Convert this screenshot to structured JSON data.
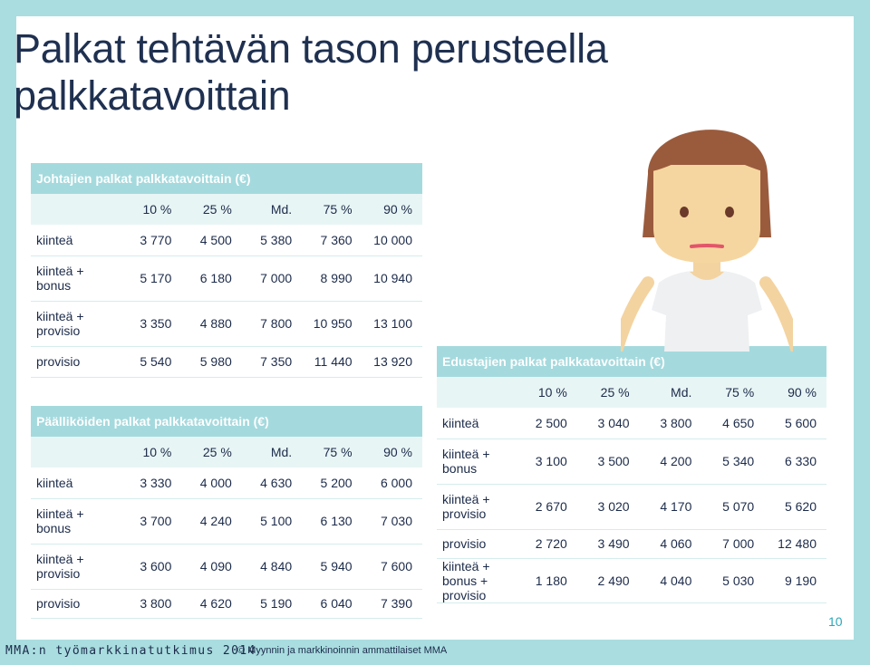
{
  "title": "Palkat tehtävän tason perusteella palkkatavoittain",
  "columns": [
    "10 %",
    "25 %",
    "Md.",
    "75 %",
    "90 %"
  ],
  "tables": {
    "johtajat": {
      "caption": "Johtajien palkat palkkatavoittain (€)",
      "rows": [
        {
          "label": "kiinteä",
          "values": [
            "3 770",
            "4 500",
            "5 380",
            "7 360",
            "10 000"
          ]
        },
        {
          "label": "kiinteä + bonus",
          "values": [
            "5 170",
            "6 180",
            "7 000",
            "8 990",
            "10 940"
          ]
        },
        {
          "label": "kiinteä + provisio",
          "values": [
            "3 350",
            "4 880",
            "7 800",
            "10 950",
            "13 100"
          ]
        },
        {
          "label": "provisio",
          "values": [
            "5 540",
            "5 980",
            "7 350",
            "11 440",
            "13 920"
          ]
        }
      ]
    },
    "paallikot": {
      "caption": "Päälliköiden palkat palkkatavoittain (€)",
      "rows": [
        {
          "label": "kiinteä",
          "values": [
            "3 330",
            "4 000",
            "4 630",
            "5 200",
            "6 000"
          ]
        },
        {
          "label": "kiinteä + bonus",
          "values": [
            "3 700",
            "4 240",
            "5 100",
            "6 130",
            "7 030"
          ]
        },
        {
          "label": "kiinteä + provisio",
          "values": [
            "3 600",
            "4 090",
            "4 840",
            "5 940",
            "7 600"
          ]
        },
        {
          "label": "provisio",
          "values": [
            "3 800",
            "4 620",
            "5 190",
            "6 040",
            "7 390"
          ]
        }
      ]
    },
    "edustajat": {
      "caption": "Edustajien palkat palkkatavoittain (€)",
      "rows": [
        {
          "label": "kiinteä",
          "values": [
            "2 500",
            "3 040",
            "3 800",
            "4 650",
            "5 600"
          ]
        },
        {
          "label": "kiinteä + bonus",
          "values": [
            "3 100",
            "3 500",
            "4 200",
            "5 340",
            "6 330"
          ]
        },
        {
          "label": "kiinteä + provisio",
          "values": [
            "2 670",
            "3 020",
            "4 170",
            "5 070",
            "5 620"
          ]
        },
        {
          "label": "provisio",
          "values": [
            "2 720",
            "3 490",
            "4 060",
            "7 000",
            "12 480"
          ]
        },
        {
          "label": "kiinteä + bonus + provisio",
          "values": [
            "1 180",
            "2 490",
            "4 040",
            "5 030",
            "9 190"
          ]
        }
      ]
    }
  },
  "footer": {
    "survey": "MMA:n työmarkkinatutkimus 2014",
    "copyright": "© Myynnin ja markkinoinnin ammattilaiset MMA",
    "page": "10"
  },
  "colors": {
    "background": "#a9dde0",
    "caption": "#a4dade",
    "header_row": "#e8f5f5",
    "title": "#1f3050",
    "accent": "#2aa8b8"
  },
  "illustration": "woman-illustration"
}
